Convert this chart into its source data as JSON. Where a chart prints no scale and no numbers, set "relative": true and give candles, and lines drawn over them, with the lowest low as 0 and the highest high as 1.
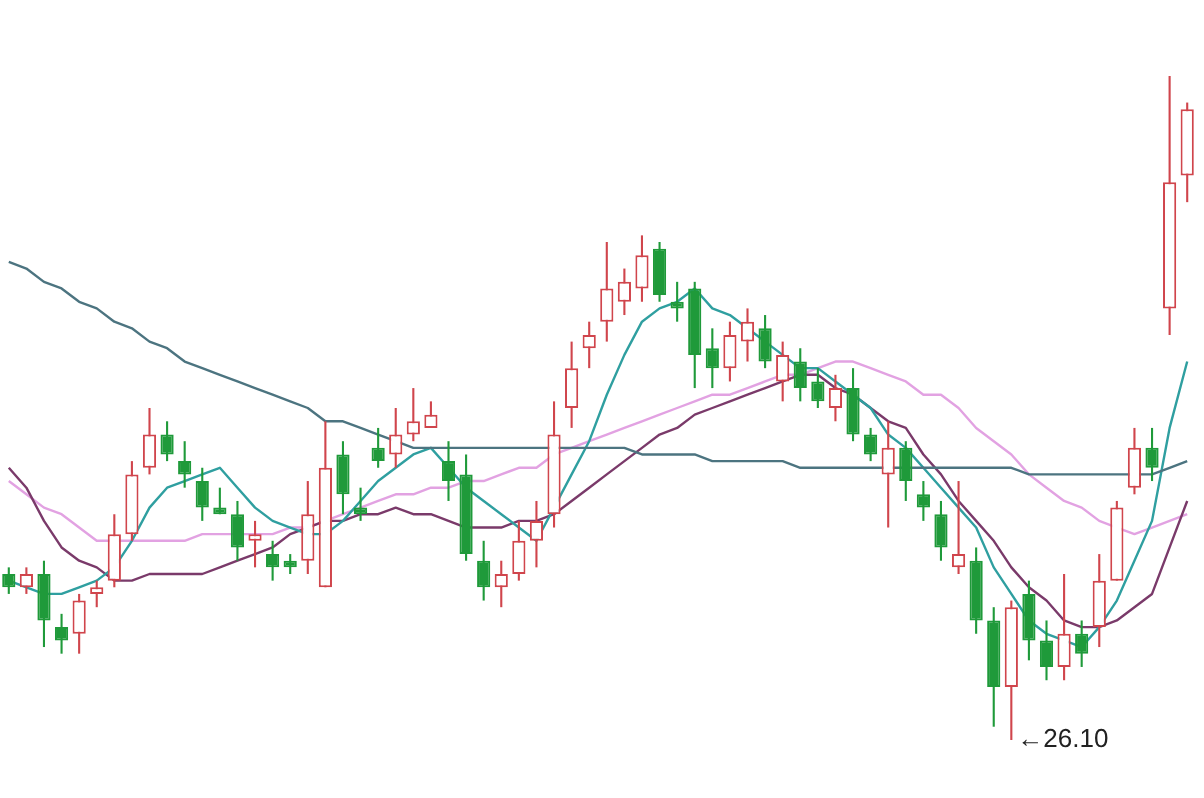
{
  "chart_data": {
    "type": "candlestick",
    "relative": true,
    "legend": false,
    "categories": [
      null,
      null,
      null,
      null,
      null,
      null,
      null,
      null,
      null,
      null,
      null,
      null,
      null,
      null,
      null,
      null,
      null,
      null,
      null,
      null,
      null,
      null,
      null,
      null,
      null,
      null,
      null,
      null,
      null,
      null,
      null,
      null,
      null,
      null,
      null,
      null,
      null,
      null,
      null,
      null,
      null,
      null,
      null,
      null,
      null,
      null,
      null,
      null,
      null,
      null,
      null,
      null,
      null,
      null,
      null,
      null,
      null,
      null,
      null,
      null,
      null,
      null,
      null,
      null,
      null,
      null,
      null,
      null
    ],
    "ohlc": [
      [
        0.25,
        0.26,
        0.22,
        0.23
      ],
      [
        0.23,
        0.26,
        0.22,
        0.25
      ],
      [
        0.25,
        0.27,
        0.14,
        0.18
      ],
      [
        0.17,
        0.19,
        0.13,
        0.15
      ],
      [
        0.16,
        0.22,
        0.13,
        0.21
      ],
      [
        0.22,
        0.24,
        0.2,
        0.23
      ],
      [
        0.24,
        0.34,
        0.23,
        0.31
      ],
      [
        0.31,
        0.42,
        0.3,
        0.4
      ],
      [
        0.41,
        0.5,
        0.4,
        0.46
      ],
      [
        0.46,
        0.48,
        0.42,
        0.43
      ],
      [
        0.42,
        0.45,
        0.38,
        0.4
      ],
      [
        0.39,
        0.41,
        0.33,
        0.35
      ],
      [
        0.35,
        0.38,
        0.34,
        0.34
      ],
      [
        0.34,
        0.36,
        0.27,
        0.29
      ],
      [
        0.3,
        0.33,
        0.26,
        0.31
      ],
      [
        0.28,
        0.3,
        0.24,
        0.26
      ],
      [
        0.27,
        0.28,
        0.25,
        0.26
      ],
      [
        0.27,
        0.39,
        0.25,
        0.34
      ],
      [
        0.23,
        0.48,
        0.23,
        0.41
      ],
      [
        0.43,
        0.45,
        0.34,
        0.37
      ],
      [
        0.35,
        0.38,
        0.33,
        0.34
      ],
      [
        0.44,
        0.47,
        0.41,
        0.42
      ],
      [
        0.43,
        0.5,
        0.41,
        0.46
      ],
      [
        0.46,
        0.53,
        0.45,
        0.48
      ],
      [
        0.47,
        0.51,
        0.47,
        0.49
      ],
      [
        0.42,
        0.45,
        0.36,
        0.39
      ],
      [
        0.4,
        0.43,
        0.27,
        0.28
      ],
      [
        0.27,
        0.3,
        0.21,
        0.23
      ],
      [
        0.23,
        0.27,
        0.2,
        0.25
      ],
      [
        0.25,
        0.33,
        0.24,
        0.3
      ],
      [
        0.3,
        0.36,
        0.26,
        0.33
      ],
      [
        0.34,
        0.51,
        0.32,
        0.46
      ],
      [
        0.5,
        0.6,
        0.47,
        0.56
      ],
      [
        0.59,
        0.63,
        0.56,
        0.61
      ],
      [
        0.63,
        0.75,
        0.6,
        0.68
      ],
      [
        0.66,
        0.71,
        0.64,
        0.69
      ],
      [
        0.68,
        0.76,
        0.66,
        0.73
      ],
      [
        0.74,
        0.75,
        0.66,
        0.67
      ],
      [
        0.66,
        0.69,
        0.63,
        0.65
      ],
      [
        0.68,
        0.69,
        0.53,
        0.58
      ],
      [
        0.59,
        0.62,
        0.53,
        0.56
      ],
      [
        0.56,
        0.63,
        0.54,
        0.61
      ],
      [
        0.6,
        0.65,
        0.57,
        0.63
      ],
      [
        0.62,
        0.64,
        0.56,
        0.57
      ],
      [
        0.54,
        0.6,
        0.51,
        0.58
      ],
      [
        0.57,
        0.59,
        0.51,
        0.53
      ],
      [
        0.54,
        0.56,
        0.5,
        0.51
      ],
      [
        0.5,
        0.55,
        0.48,
        0.53
      ],
      [
        0.53,
        0.56,
        0.45,
        0.46
      ],
      [
        0.46,
        0.47,
        0.42,
        0.43
      ],
      [
        0.4,
        0.48,
        0.32,
        0.44
      ],
      [
        0.44,
        0.45,
        0.36,
        0.39
      ],
      [
        0.37,
        0.39,
        0.33,
        0.35
      ],
      [
        0.34,
        0.36,
        0.27,
        0.29
      ],
      [
        0.26,
        0.39,
        0.25,
        0.28
      ],
      [
        0.27,
        0.29,
        0.16,
        0.18
      ],
      [
        0.18,
        0.2,
        0.02,
        0.08
      ],
      [
        0.08,
        0.21,
        0,
        0.2
      ],
      [
        0.22,
        0.24,
        0.12,
        0.15
      ],
      [
        0.15,
        0.18,
        0.09,
        0.11
      ],
      [
        0.11,
        0.25,
        0.09,
        0.16
      ],
      [
        0.16,
        0.18,
        0.11,
        0.13
      ],
      [
        0.17,
        0.28,
        0.14,
        0.24
      ],
      [
        0.24,
        0.36,
        0.24,
        0.35
      ],
      [
        0.38,
        0.47,
        0.37,
        0.44
      ],
      [
        0.44,
        0.47,
        0.39,
        0.41
      ],
      [
        0.65,
        1,
        0.61,
        0.84
      ],
      [
        0.85,
        0.96,
        0.81,
        0.95
      ]
    ],
    "colors": [
      "#1f9a3a",
      "#d0454c",
      "#1f9a3a",
      "#1f9a3a",
      "#d0454c",
      "#d0454c",
      "#d0454c",
      "#d0454c",
      "#d0454c",
      "#1f9a3a",
      "#1f9a3a",
      "#1f9a3a",
      "#1f9a3a",
      "#1f9a3a",
      "#d0454c",
      "#1f9a3a",
      "#1f9a3a",
      "#d0454c",
      "#d0454c",
      "#1f9a3a",
      "#1f9a3a",
      "#1f9a3a",
      "#d0454c",
      "#d0454c",
      "#d0454c",
      "#1f9a3a",
      "#1f9a3a",
      "#1f9a3a",
      "#d0454c",
      "#d0454c",
      "#d0454c",
      "#d0454c",
      "#d0454c",
      "#d0454c",
      "#d0454c",
      "#d0454c",
      "#d0454c",
      "#1f9a3a",
      "#1f9a3a",
      "#1f9a3a",
      "#1f9a3a",
      "#d0454c",
      "#d0454c",
      "#1f9a3a",
      "#d0454c",
      "#1f9a3a",
      "#1f9a3a",
      "#d0454c",
      "#1f9a3a",
      "#1f9a3a",
      "#d0454c",
      "#1f9a3a",
      "#1f9a3a",
      "#1f9a3a",
      "#d0454c",
      "#1f9a3a",
      "#1f9a3a",
      "#d0454c",
      "#1f9a3a",
      "#1f9a3a",
      "#d0454c",
      "#1f9a3a",
      "#d0454c",
      "#d0454c",
      "#d0454c",
      "#1f9a3a",
      "#d0454c",
      "#d0454c"
    ],
    "series": [
      {
        "type": "line",
        "color": "#4c7480",
        "values": [
          0.72,
          0.71,
          0.69,
          0.68,
          0.66,
          0.65,
          0.63,
          0.62,
          0.6,
          0.59,
          0.57,
          0.56,
          0.55,
          0.54,
          0.53,
          0.52,
          0.51,
          0.5,
          0.48,
          0.48,
          0.47,
          0.46,
          0.45,
          0.44,
          0.44,
          0.44,
          0.44,
          0.44,
          0.44,
          0.44,
          0.44,
          0.44,
          0.44,
          0.44,
          0.44,
          0.44,
          0.43,
          0.43,
          0.43,
          0.43,
          0.42,
          0.42,
          0.42,
          0.42,
          0.42,
          0.41,
          0.41,
          0.41,
          0.41,
          0.41,
          0.41,
          0.41,
          0.41,
          0.41,
          0.41,
          0.41,
          0.41,
          0.41,
          0.4,
          0.4,
          0.4,
          0.4,
          0.4,
          0.4,
          0.4,
          0.4,
          0.41,
          0.42
        ]
      },
      {
        "type": "line",
        "color": "#2f9fa0",
        "values": [
          0.24,
          0.23,
          0.22,
          0.22,
          0.23,
          0.24,
          0.26,
          0.3,
          0.35,
          0.38,
          0.39,
          0.4,
          0.41,
          0.38,
          0.35,
          0.33,
          0.32,
          0.31,
          0.31,
          0.33,
          0.36,
          0.39,
          0.41,
          0.43,
          0.44,
          0.41,
          0.38,
          0.36,
          0.34,
          0.32,
          0.3,
          0.35,
          0.4,
          0.45,
          0.52,
          0.58,
          0.63,
          0.65,
          0.66,
          0.68,
          0.65,
          0.64,
          0.62,
          0.6,
          0.58,
          0.56,
          0.56,
          0.54,
          0.52,
          0.5,
          0.46,
          0.44,
          0.41,
          0.38,
          0.35,
          0.32,
          0.26,
          0.22,
          0.18,
          0.16,
          0.15,
          0.14,
          0.17,
          0.21,
          0.27,
          0.33,
          0.47,
          0.57
        ]
      },
      {
        "type": "line",
        "color": "#7a3a6a",
        "values": [
          0.41,
          0.38,
          0.33,
          0.29,
          0.27,
          0.26,
          0.24,
          0.24,
          0.25,
          0.25,
          0.25,
          0.25,
          0.26,
          0.27,
          0.28,
          0.29,
          0.31,
          0.32,
          0.33,
          0.33,
          0.34,
          0.34,
          0.35,
          0.34,
          0.34,
          0.33,
          0.32,
          0.32,
          0.32,
          0.33,
          0.33,
          0.34,
          0.36,
          0.38,
          0.4,
          0.42,
          0.44,
          0.46,
          0.47,
          0.49,
          0.5,
          0.51,
          0.52,
          0.53,
          0.54,
          0.55,
          0.55,
          0.53,
          0.52,
          0.5,
          0.48,
          0.47,
          0.43,
          0.4,
          0.36,
          0.33,
          0.3,
          0.26,
          0.23,
          0.21,
          0.18,
          0.17,
          0.17,
          0.18,
          0.2,
          0.22,
          0.29,
          0.36
        ]
      },
      {
        "type": "line",
        "color": "#e2a2e2",
        "values": [
          0.39,
          0.37,
          0.35,
          0.34,
          0.32,
          0.3,
          0.3,
          0.3,
          0.3,
          0.3,
          0.3,
          0.31,
          0.31,
          0.31,
          0.31,
          0.31,
          0.32,
          0.32,
          0.33,
          0.34,
          0.35,
          0.36,
          0.37,
          0.37,
          0.38,
          0.38,
          0.39,
          0.39,
          0.4,
          0.41,
          0.41,
          0.43,
          0.44,
          0.45,
          0.46,
          0.47,
          0.48,
          0.49,
          0.5,
          0.51,
          0.52,
          0.52,
          0.53,
          0.54,
          0.55,
          0.55,
          0.56,
          0.57,
          0.57,
          0.56,
          0.55,
          0.54,
          0.52,
          0.52,
          0.5,
          0.47,
          0.45,
          0.43,
          0.4,
          0.38,
          0.36,
          0.35,
          0.33,
          0.32,
          0.31,
          0.32,
          0.33,
          0.34
        ]
      }
    ],
    "annotations": [
      "←26.10"
    ]
  }
}
